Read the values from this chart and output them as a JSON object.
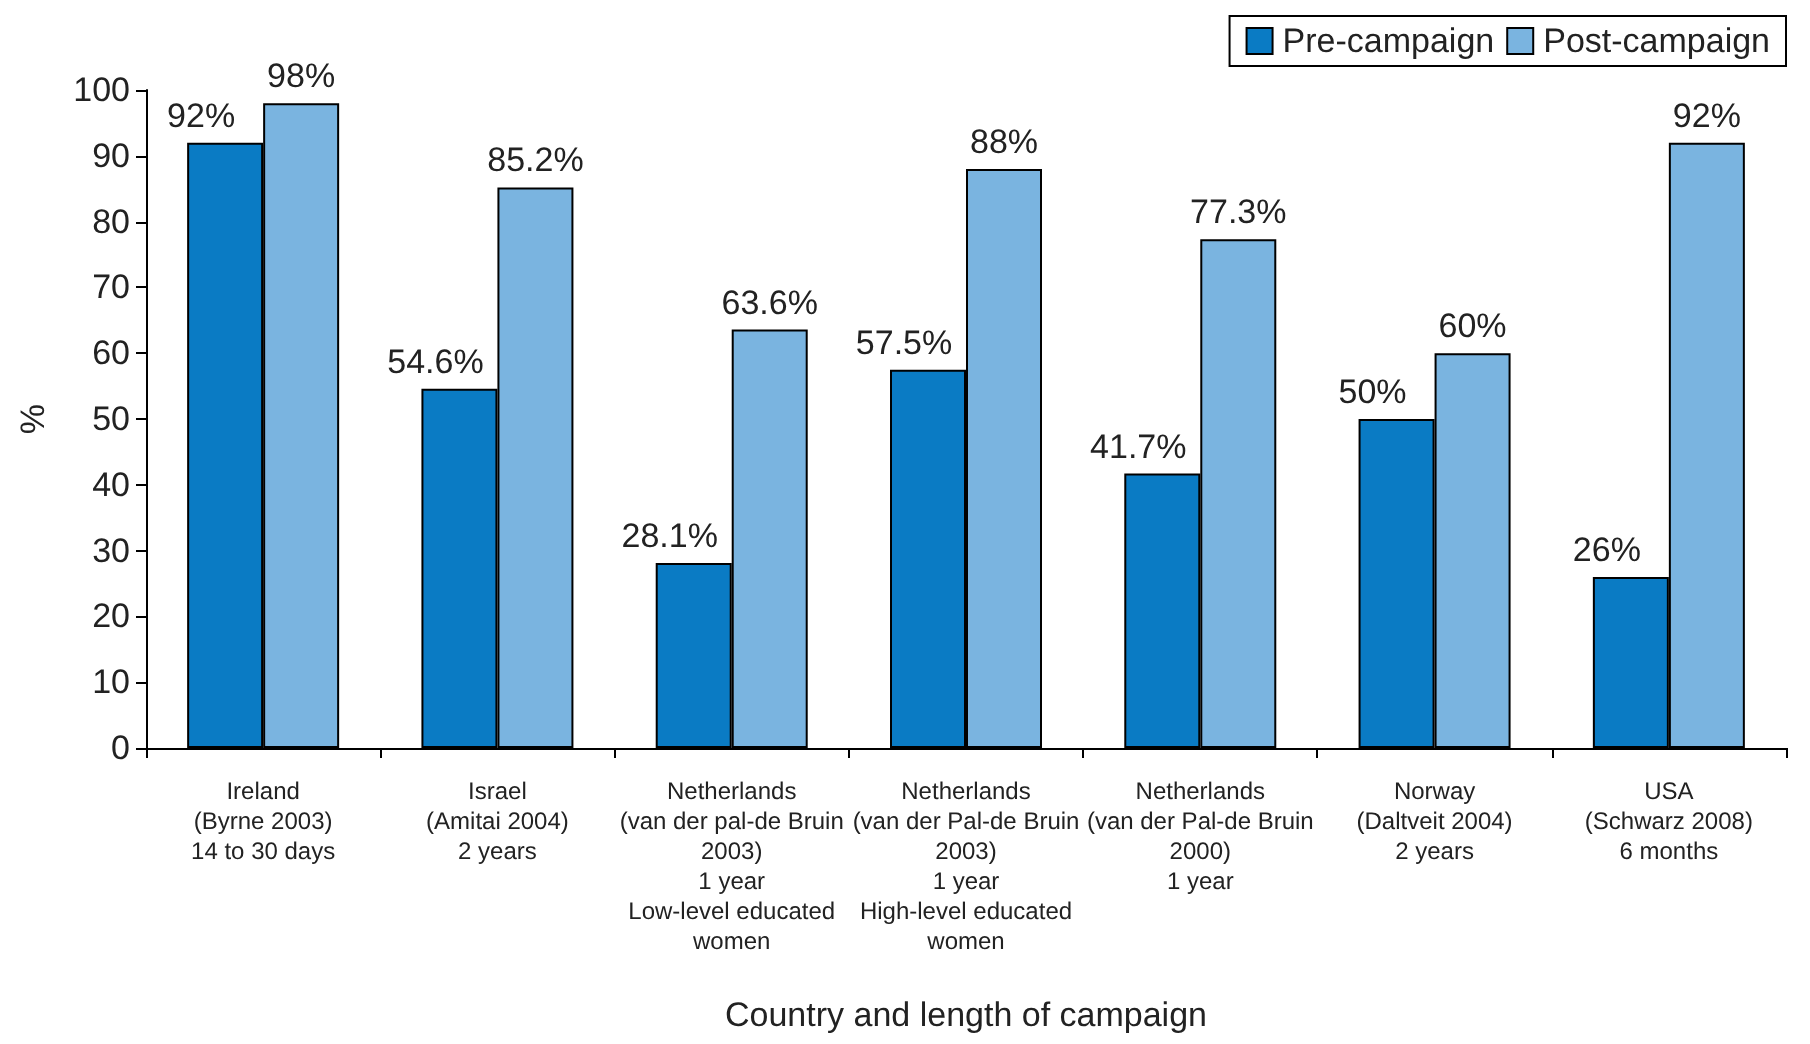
{
  "chart_data": {
    "type": "bar",
    "xlabel": "Country and length of campaign",
    "ylabel": "%",
    "categories": [
      "Ireland\n(Byrne 2003)\n14 to 30 days",
      "Israel\n(Amitai 2004)\n2 years",
      "Netherlands\n(van der pal-de Bruin\n2003)\n1 year\nLow-level educated\nwomen",
      "Netherlands\n(van der Pal-de Bruin\n2003)\n1 year\nHigh-level educated\nwomen",
      "Netherlands\n(van der Pal-de Bruin\n2000)\n1 year",
      "Norway\n(Daltveit 2004)\n2 years",
      "USA\n(Schwarz 2008)\n6 months"
    ],
    "series": [
      {
        "name": "Pre-campaign",
        "color": "#0a7bc4",
        "values": [
          92,
          54.6,
          28.1,
          57.5,
          41.7,
          50,
          26
        ],
        "value_labels": [
          "92%",
          "54.6%",
          "28.1%",
          "57.5%",
          "41.7%",
          "50%",
          "26%"
        ]
      },
      {
        "name": "Post-campaign",
        "color": "#7ab4e0",
        "values": [
          98,
          85.2,
          63.6,
          88,
          77.3,
          60,
          92
        ],
        "value_labels": [
          "98%",
          "85.2%",
          "63.6%",
          "88%",
          "77.3%",
          "60%",
          "92%"
        ]
      }
    ],
    "ylim": [
      0,
      100
    ],
    "yticks": [
      0,
      10,
      20,
      30,
      40,
      50,
      60,
      70,
      80,
      90,
      100
    ],
    "grid": false,
    "legend": "top right"
  }
}
